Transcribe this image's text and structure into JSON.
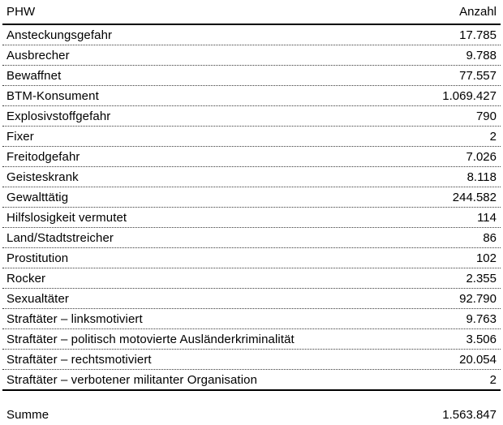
{
  "table": {
    "header": {
      "label": "PHW",
      "value": "Anzahl"
    },
    "rows": [
      {
        "label": "Ansteckungsgefahr",
        "value": "17.785"
      },
      {
        "label": "Ausbrecher",
        "value": "9.788"
      },
      {
        "label": "Bewaffnet",
        "value": "77.557"
      },
      {
        "label": "BTM-Konsument",
        "value": "1.069.427"
      },
      {
        "label": "Explosivstoffgefahr",
        "value": "790"
      },
      {
        "label": "Fixer",
        "value": "2"
      },
      {
        "label": "Freitodgefahr",
        "value": "7.026"
      },
      {
        "label": "Geisteskrank",
        "value": "8.118"
      },
      {
        "label": "Gewalttätig",
        "value": "244.582"
      },
      {
        "label": "Hilfslosigkeit vermutet",
        "value": "114"
      },
      {
        "label": "Land/Stadtstreicher",
        "value": "86"
      },
      {
        "label": "Prostitution",
        "value": "102"
      },
      {
        "label": "Rocker",
        "value": "2.355"
      },
      {
        "label": "Sexualtäter",
        "value": "92.790"
      },
      {
        "label": "Straftäter – linksmotiviert",
        "value": "9.763"
      },
      {
        "label": "Straftäter – politisch motovierte Ausländerkriminalität",
        "value": "3.506"
      },
      {
        "label": "Straftäter – rechtsmotiviert",
        "value": "20.054"
      },
      {
        "label": "Straftäter – verbotener militanter Organisation",
        "value": "2"
      }
    ],
    "footer": {
      "label": "Summe",
      "value": "1.563.847"
    }
  },
  "colors": {
    "text": "#000000",
    "background": "#ffffff",
    "solid_line": "#000000",
    "dotted_line": "#3a3a3a"
  }
}
